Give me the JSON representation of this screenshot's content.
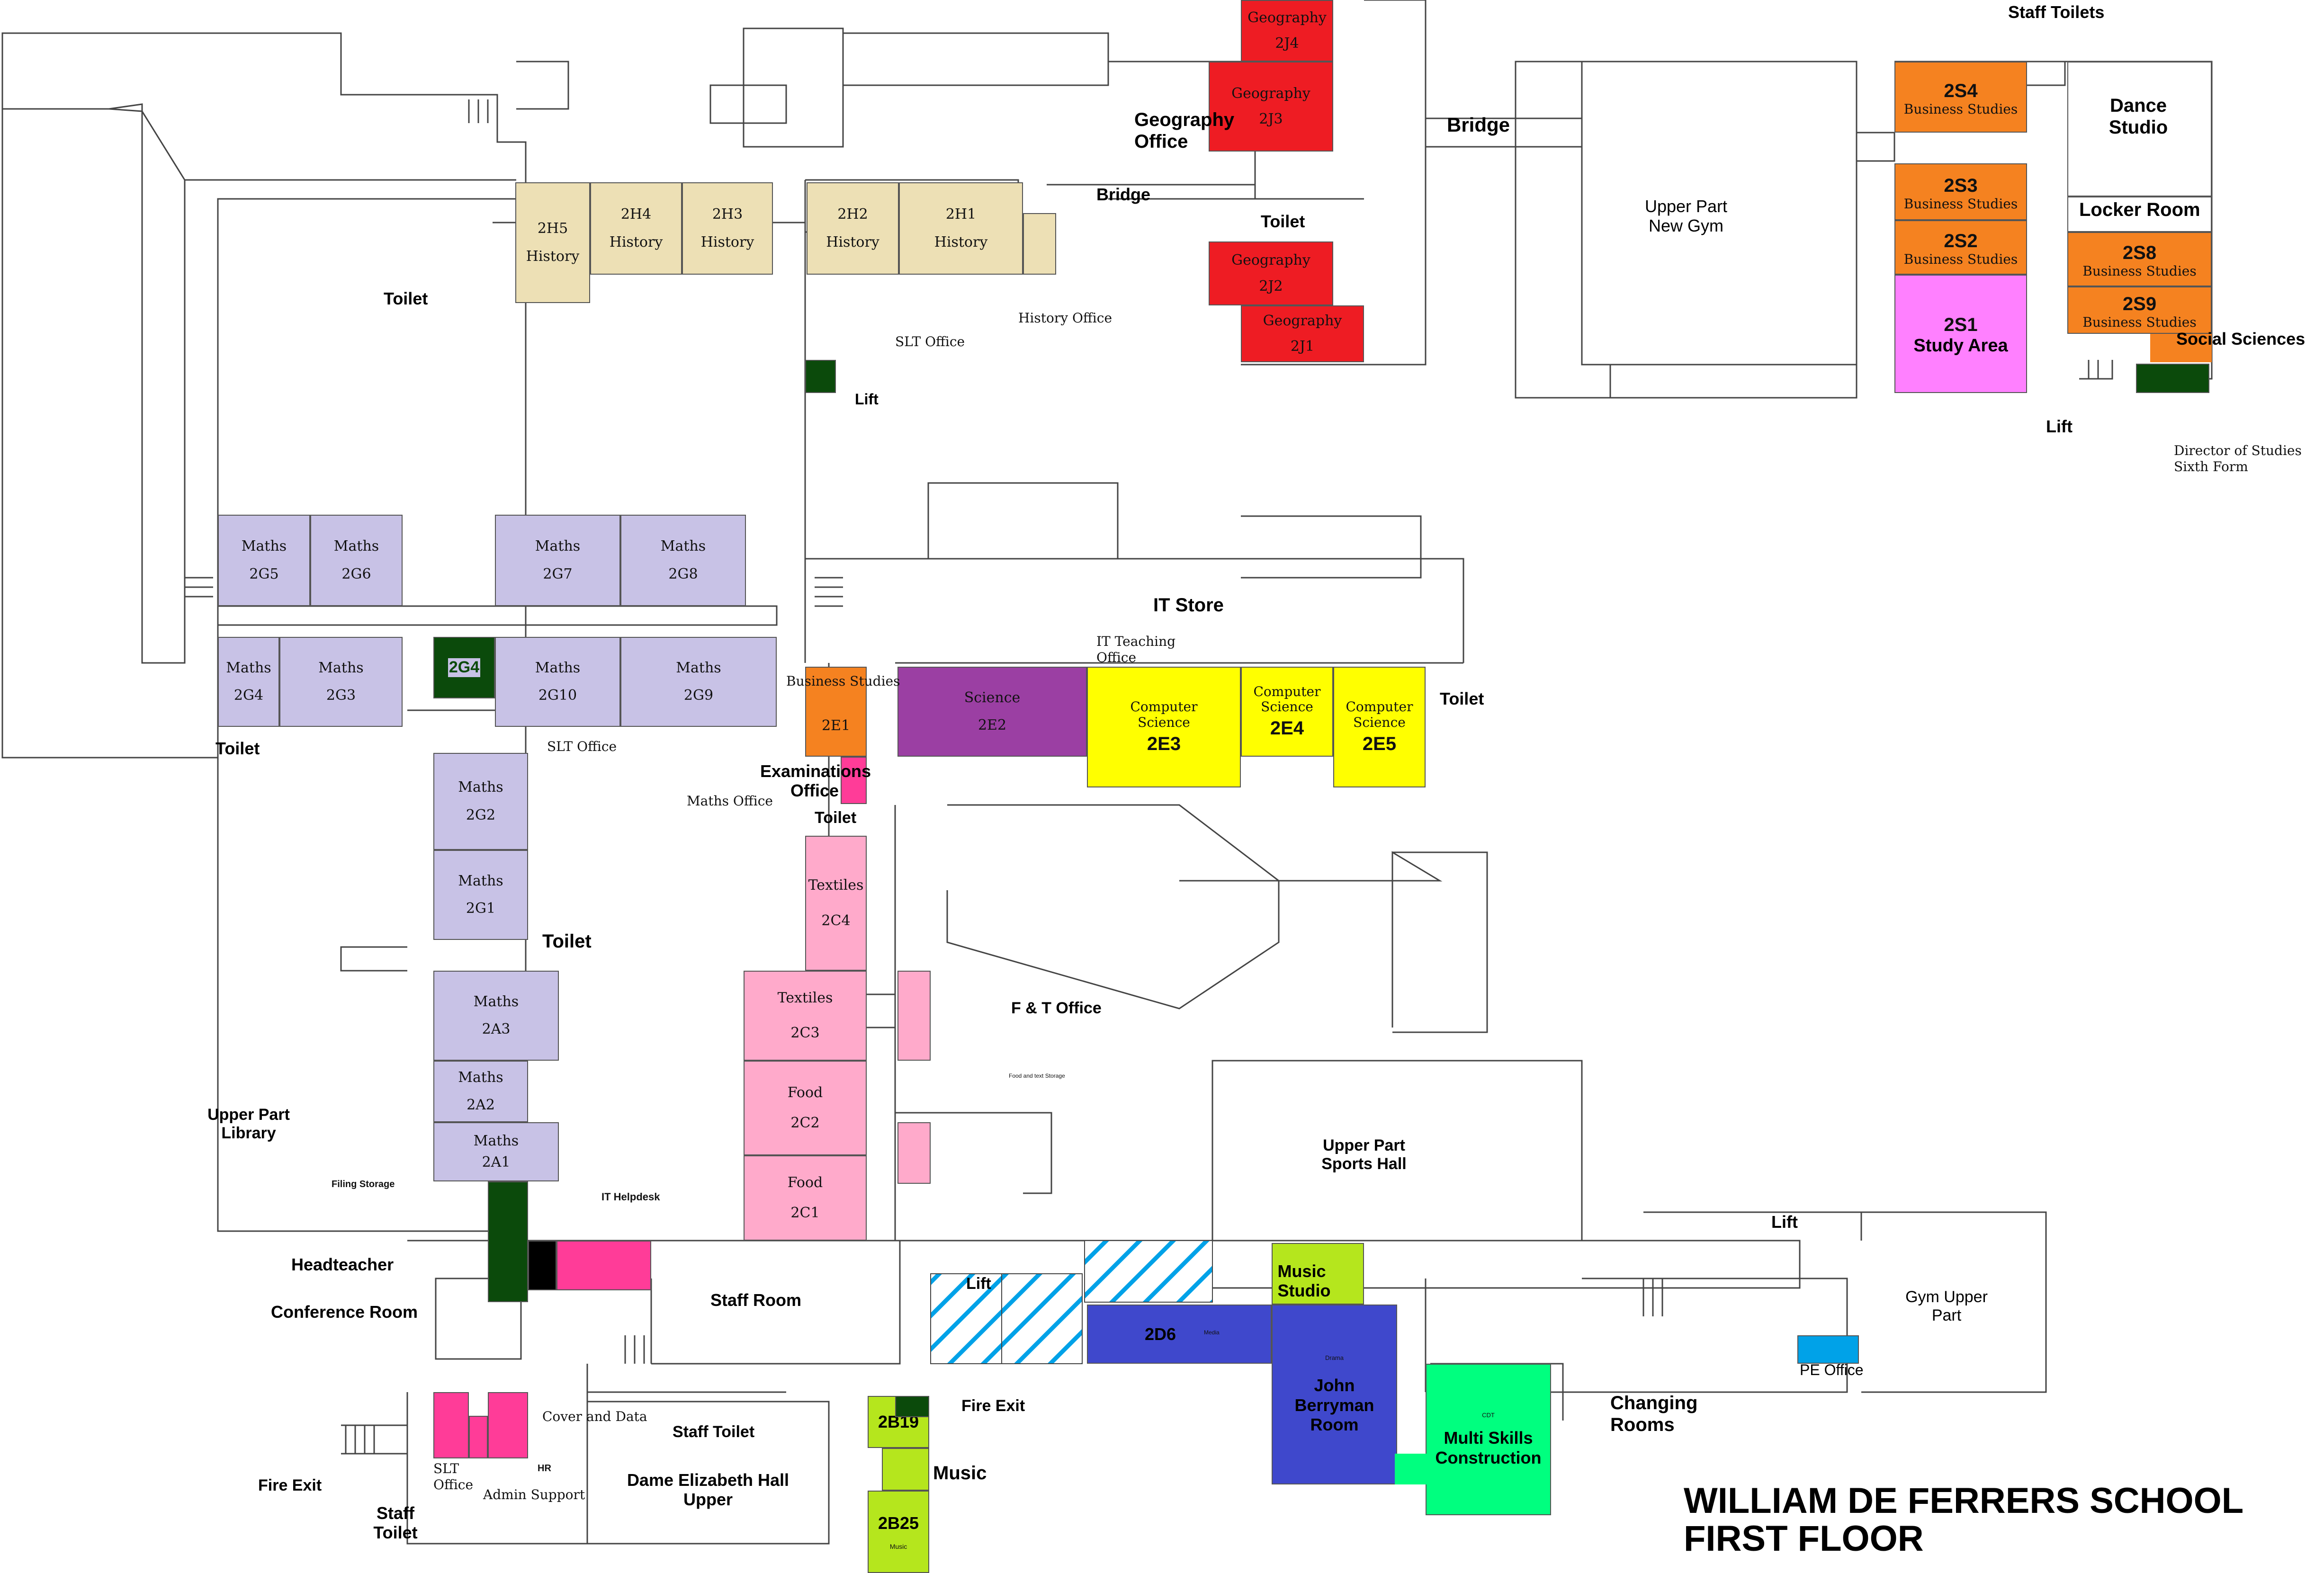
{
  "title": {
    "line1": "WILLIAM DE FERRERS SCHOOL",
    "line2": "FIRST FLOOR"
  },
  "colors": {
    "history": "#ede0b5",
    "maths": "#c8c2e6",
    "geography": "#ee1c23",
    "business": "#f58220",
    "study_area": "#ff80ff",
    "science": "#9b3fa3",
    "computer_science": "#ffff00",
    "textiles_food": "#ffaacb",
    "office_pink": "#ff3c98",
    "dark_green": "#0b4a0b",
    "music": "#b5e61d",
    "drama_media": "#3f48cc",
    "cdt": "#00ff7f",
    "pe_office": "#00a2e8",
    "stairs_hatch": "#00a2e8"
  },
  "rooms": {
    "2H5": {
      "code": "2H5",
      "name": "History"
    },
    "2H4": {
      "code": "2H4",
      "name": "History"
    },
    "2H3": {
      "code": "2H3",
      "name": "History"
    },
    "2H2": {
      "code": "2H2",
      "name": "History"
    },
    "2H1": {
      "code": "2H1",
      "name": "History"
    },
    "2J4": {
      "code": "2J4",
      "name": "Geography"
    },
    "2J3": {
      "code": "2J3",
      "name": "Geography"
    },
    "2J2": {
      "code": "2J2",
      "name": "Geography"
    },
    "2J1": {
      "code": "2J1",
      "name": "Geography"
    },
    "2S4": {
      "code": "2S4",
      "name": "Business Studies"
    },
    "2S3": {
      "code": "2S3",
      "name": "Business Studies"
    },
    "2S2": {
      "code": "2S2",
      "name": "Business Studies"
    },
    "2S8": {
      "code": "2S8",
      "name": "Business Studies"
    },
    "2S9": {
      "code": "2S9",
      "name": "Business Studies"
    },
    "2S1": {
      "code": "2S1",
      "name": "Study Area"
    },
    "2G5": {
      "code": "2G5",
      "name": "Maths"
    },
    "2G6": {
      "code": "2G6",
      "name": "Maths"
    },
    "2G7": {
      "code": "2G7",
      "name": "Maths"
    },
    "2G8": {
      "code": "2G8",
      "name": "Maths"
    },
    "2G4m": {
      "code": "2G4",
      "name": "Maths"
    },
    "2G3": {
      "code": "2G3",
      "name": "Maths"
    },
    "2G4": {
      "code": "2G4"
    },
    "2G10": {
      "code": "2G10",
      "name": "Maths"
    },
    "2G9": {
      "code": "2G9",
      "name": "Maths"
    },
    "2G2": {
      "code": "2G2",
      "name": "Maths"
    },
    "2G1": {
      "code": "2G1",
      "name": "Maths"
    },
    "2A3": {
      "code": "2A3",
      "name": "Maths"
    },
    "2A2": {
      "code": "2A2",
      "name": "Maths"
    },
    "2A1": {
      "code": "2A1",
      "name": "Maths"
    },
    "2E1": {
      "code": "2E1",
      "name": "Business Studies"
    },
    "2E2": {
      "code": "2E2",
      "name": "Science"
    },
    "2E3": {
      "code": "2E3",
      "name": "Computer Science"
    },
    "2E4": {
      "code": "2E4",
      "name": "Computer Science"
    },
    "2E5": {
      "code": "2E5",
      "name": "Computer Science"
    },
    "2C4": {
      "code": "2C4",
      "name": "Textiles"
    },
    "2C3": {
      "code": "2C3",
      "name": "Textiles"
    },
    "2C2": {
      "code": "2C2",
      "name": "Food"
    },
    "2C1": {
      "code": "2C1",
      "name": "Food"
    },
    "2D6": {
      "code": "2D6",
      "name": "Media"
    },
    "john_berryman": {
      "name": "John Berryman Room",
      "subtitle": "Drama"
    },
    "multi_skills": {
      "name": "Multi Skills Construction",
      "subtitle": "CDT"
    },
    "music_studio": {
      "name": "Music Studio"
    },
    "2B19": {
      "code": "2B19"
    },
    "2B25": {
      "code": "2B25",
      "name": "Music"
    },
    "pe_office": {
      "name": "PE Office"
    }
  },
  "labels": {
    "staff_toilets": "Staff Toilets",
    "dance_studio": "Dance Studio",
    "locker_room": "Locker Room",
    "social_sciences": "Social Sciences",
    "lift_ne": "Lift",
    "director": "Director of Studies Sixth Form",
    "geography_office": "Geography Office",
    "bridge_top": "Bridge",
    "bridge_mid": "Bridge",
    "toilet_geo": "Toilet",
    "upper_new_gym": "Upper Part New Gym",
    "toilet_nw": "Toilet",
    "history_office": "History Office",
    "slt_office_top": "SLT Office",
    "lift_center": "Lift",
    "it_store": "IT Store",
    "it_teaching": "IT Teaching Office",
    "toilet_cs": "Toilet",
    "business_studies": "Business Studies",
    "toilet_left": "Toilet",
    "slt_office_mid": "SLT Office",
    "maths_office": "Maths Office",
    "exams_office": "Examinations Office",
    "toilet_exam": "Toilet",
    "toilet_maths": "Toilet",
    "ft_office": "F & T Office",
    "food_textile_storage": "Food and text Storage",
    "upper_library": "Upper Part Library",
    "filing_storage": "Filing Storage",
    "it_helpdesk": "IT Helpdesk",
    "headteacher": "Headteacher",
    "conference_room": "Conference Room",
    "staff_room": "Staff Room",
    "upper_sports_hall": "Upper Part Sports Hall",
    "lift_right": "Lift",
    "lift_stairs": "Lift",
    "gym_upper": "Gym Upper Part",
    "changing_rooms": "Changing Rooms",
    "fire_exit_center": "Fire Exit",
    "fire_exit_left": "Fire Exit",
    "staff_toilet_left": "Staff Toilet",
    "slt_office_bottom": "SLT Office",
    "hr": "HR",
    "admin_support": "Admin Support",
    "cover_and_data": "Cover and Data",
    "staff_toilet_hall": "Staff Toilet",
    "dame_elizabeth": "Dame Elizabeth Hall Upper",
    "music": "Music"
  }
}
